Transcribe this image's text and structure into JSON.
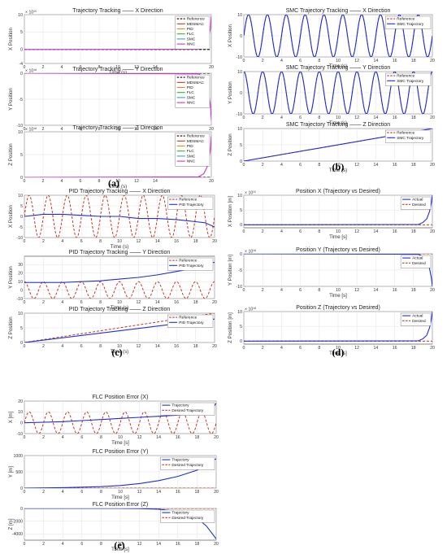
{
  "figure_captions": [
    "(a)",
    "(b)",
    "(c)",
    "(d)",
    "(e)"
  ],
  "chart_data": [
    {
      "id": "a1",
      "panel": "(a)",
      "type": "line",
      "title": "Trajectory Tracking —— X Direction",
      "xlabel": "Time (s)",
      "ylabel": "X Position",
      "exponent": "× 10¹⁵",
      "xlim": [
        0,
        20
      ],
      "ylim": [
        -4,
        10
      ],
      "xticks": [
        0,
        2,
        4,
        6,
        8,
        10,
        12,
        14,
        20
      ],
      "yticks": [
        -4,
        0,
        5,
        10
      ],
      "legend": [
        "Reference",
        "MDSMAC",
        "PID",
        "FLC",
        "SMC",
        "NNC"
      ],
      "series": [
        {
          "name": "Reference",
          "color": "#000000",
          "dash": "3,2",
          "x": [
            0,
            20
          ],
          "y": [
            0,
            0
          ]
        },
        {
          "name": "NNC",
          "color": "#cc33cc",
          "x": [
            0,
            18.6,
            19.2,
            19.6,
            19.9,
            20
          ],
          "y": [
            0,
            0.1,
            0.6,
            2,
            6,
            9.5
          ]
        }
      ]
    },
    {
      "id": "a2",
      "panel": "(a)",
      "type": "line",
      "title": "Trajectory Tracking —— Y Direction",
      "xlabel": "Time (s)",
      "ylabel": "Y Position",
      "exponent": "× 10¹⁸",
      "xlim": [
        0,
        20
      ],
      "ylim": [
        -10,
        0
      ],
      "xticks": [
        0,
        2,
        4,
        6,
        8,
        10,
        12,
        14,
        20
      ],
      "yticks": [
        -10,
        -5,
        0
      ],
      "legend": [
        "Reference",
        "MDSMAC",
        "PID",
        "FLC",
        "SMC",
        "NNC"
      ],
      "series": [
        {
          "name": "Reference",
          "color": "#000000",
          "dash": "3,2",
          "x": [
            0,
            20
          ],
          "y": [
            0,
            0
          ]
        },
        {
          "name": "NNC",
          "color": "#cc33cc",
          "x": [
            0,
            18.6,
            19.2,
            19.6,
            19.9,
            20
          ],
          "y": [
            0,
            -0.1,
            -0.8,
            -2.5,
            -6,
            -9
          ]
        }
      ]
    },
    {
      "id": "a3",
      "panel": "(a)",
      "type": "line",
      "title": "Trajectory Tracking —— Z Direction",
      "xlabel": "Time (s)",
      "ylabel": "Z Position",
      "exponent": "× 10¹⁸",
      "xlim": [
        0,
        20
      ],
      "ylim": [
        0,
        10
      ],
      "xticks": [
        0,
        2,
        4,
        6,
        8,
        10,
        12,
        14,
        20
      ],
      "yticks": [
        0,
        5,
        10
      ],
      "legend": [
        "Reference",
        "MDSMAC",
        "PID",
        "FLC",
        "SMC",
        "NNC"
      ],
      "series": [
        {
          "name": "Reference",
          "color": "#000000",
          "dash": "3,2",
          "x": [
            0,
            20
          ],
          "y": [
            0,
            0
          ]
        },
        {
          "name": "NNC",
          "color": "#cc33cc",
          "x": [
            0,
            18.6,
            19.2,
            19.6,
            19.9,
            20
          ],
          "y": [
            0,
            0.1,
            0.8,
            2.5,
            6,
            9
          ]
        }
      ]
    },
    {
      "id": "b1",
      "panel": "(b)",
      "type": "line",
      "title": "SMC Trajectory Tracking —— X Direction",
      "xlabel": "Time (s)",
      "ylabel": "X Position",
      "xlim": [
        0,
        20
      ],
      "ylim": [
        -10,
        10
      ],
      "xticks": [
        0,
        2,
        4,
        6,
        8,
        10,
        12,
        14,
        16,
        18,
        20
      ],
      "yticks": [
        -10,
        0,
        10
      ],
      "legend": [
        "Reference",
        "SMC Trajectory"
      ],
      "series": [
        {
          "name": "Reference",
          "color": "#c0392b",
          "dash": "3,2",
          "func": "sin",
          "amp": 10,
          "freq": 0.5
        },
        {
          "name": "SMC Trajectory",
          "color": "#1f2fd0",
          "func": "sin",
          "amp": 10,
          "freq": 0.5
        }
      ]
    },
    {
      "id": "b2",
      "panel": "(b)",
      "type": "line",
      "title": "SMC Trajectory Tracking —— Y Direction",
      "xlabel": "Time (s)",
      "ylabel": "Y Position",
      "xlim": [
        0,
        20
      ],
      "ylim": [
        -10,
        10
      ],
      "xticks": [
        0,
        2,
        4,
        6,
        8,
        10,
        12,
        14,
        16,
        18,
        20
      ],
      "yticks": [
        -10,
        0,
        10
      ],
      "legend": [
        "Reference",
        "SMC Trajectory"
      ],
      "series": [
        {
          "name": "Reference",
          "color": "#c0392b",
          "dash": "3,2",
          "func": "cos",
          "amp": 10,
          "freq": 0.5
        },
        {
          "name": "SMC Trajectory",
          "color": "#1f2fd0",
          "func": "cos",
          "amp": 10,
          "freq": 0.5
        }
      ]
    },
    {
      "id": "b3",
      "panel": "(b)",
      "type": "line",
      "title": "SMC Trajectory Tracking —— Z Direction",
      "xlabel": "Time (s)",
      "ylabel": "Z Position",
      "xlim": [
        0,
        20
      ],
      "ylim": [
        0,
        10
      ],
      "xticks": [
        0,
        2,
        4,
        6,
        8,
        10,
        12,
        14,
        16,
        18,
        20
      ],
      "yticks": [
        0,
        5,
        10
      ],
      "legend": [
        "Reference",
        "SMC Trajectory"
      ],
      "series": [
        {
          "name": "Reference",
          "color": "#c0392b",
          "dash": "3,2",
          "x": [
            0,
            20
          ],
          "y": [
            0,
            10
          ]
        },
        {
          "name": "SMC Trajectory",
          "color": "#1f2fd0",
          "x": [
            0,
            20
          ],
          "y": [
            0,
            10
          ]
        }
      ]
    },
    {
      "id": "c1",
      "panel": "(c)",
      "type": "line",
      "title": "PID Trajectory Tracking —— X Direction",
      "xlabel": "Time (s)",
      "ylabel": "X Position",
      "xlim": [
        0,
        20
      ],
      "ylim": [
        -10,
        10
      ],
      "xticks": [
        0,
        2,
        4,
        6,
        8,
        10,
        12,
        14,
        16,
        18,
        20
      ],
      "yticks": [
        -10,
        -5,
        0,
        5,
        10
      ],
      "legend": [
        "Reference",
        "PID Trajectory"
      ],
      "series": [
        {
          "name": "Reference",
          "color": "#c0392b",
          "dash": "3,2",
          "func": "sin",
          "amp": 10,
          "freq": 0.5
        },
        {
          "name": "PID Trajectory",
          "color": "#1f2fd0",
          "x": [
            0,
            2,
            4,
            6,
            8,
            10,
            12,
            14,
            16,
            17,
            18,
            19,
            20
          ],
          "y": [
            0,
            1,
            1,
            0.5,
            0,
            0,
            -1,
            -1,
            -1.5,
            -2,
            -2.5,
            -3,
            -5
          ]
        }
      ]
    },
    {
      "id": "c2",
      "panel": "(c)",
      "type": "line",
      "title": "PID Trajectory Tracking —— Y Direction",
      "xlabel": "Time (s)",
      "ylabel": "Y Position",
      "xlim": [
        0,
        20
      ],
      "ylim": [
        -10,
        40
      ],
      "xticks": [
        0,
        2,
        4,
        6,
        8,
        10,
        12,
        14,
        16,
        18,
        20
      ],
      "yticks": [
        -10,
        0,
        10,
        20,
        30
      ],
      "legend": [
        "Reference",
        "PID Trajectory"
      ],
      "series": [
        {
          "name": "Reference",
          "color": "#c0392b",
          "dash": "3,2",
          "func": "cos",
          "amp": 10,
          "freq": 0.5
        },
        {
          "name": "PID Trajectory",
          "color": "#1f2fd0",
          "x": [
            0,
            2,
            4,
            6,
            8,
            10,
            12,
            14,
            16,
            18,
            19,
            20
          ],
          "y": [
            9,
            9,
            9,
            10,
            11,
            13,
            15,
            18,
            22,
            26,
            29,
            33
          ]
        }
      ]
    },
    {
      "id": "c3",
      "panel": "(c)",
      "type": "line",
      "title": "PID Trajectory Tracking —— Z Direction",
      "xlabel": "Time (s)",
      "ylabel": "Z Position",
      "xlim": [
        0,
        20
      ],
      "ylim": [
        0,
        10
      ],
      "xticks": [
        0,
        2,
        4,
        6,
        8,
        10,
        12,
        14,
        16,
        18,
        20
      ],
      "yticks": [
        0,
        5,
        10
      ],
      "legend": [
        "Reference",
        "PID Trajectory"
      ],
      "series": [
        {
          "name": "Reference",
          "color": "#c0392b",
          "dash": "3,2",
          "x": [
            0,
            20
          ],
          "y": [
            0,
            10
          ]
        },
        {
          "name": "PID Trajectory",
          "color": "#1f2fd0",
          "x": [
            0,
            20
          ],
          "y": [
            0,
            8
          ]
        }
      ]
    },
    {
      "id": "d1",
      "panel": "(d)",
      "type": "line",
      "title": "Position X (Trajectory vs Desired)",
      "xlabel": "Time [s]",
      "ylabel": "X Position [m]",
      "exponent": "× 10¹⁵",
      "xlim": [
        0,
        20
      ],
      "ylim": [
        -1,
        10
      ],
      "xticks": [
        0,
        2,
        4,
        6,
        8,
        10,
        12,
        14,
        16,
        18,
        20
      ],
      "yticks": [
        0,
        5,
        10
      ],
      "legend": [
        "Actual",
        "Desired"
      ],
      "series": [
        {
          "name": "Desired",
          "color": "#c0392b",
          "dash": "3,2",
          "x": [
            0,
            20
          ],
          "y": [
            0,
            0
          ]
        },
        {
          "name": "Actual",
          "color": "#1f2fd0",
          "x": [
            0,
            18.5,
            19,
            19.4,
            19.7,
            19.9,
            20
          ],
          "y": [
            0,
            0.1,
            0.8,
            2,
            4.5,
            7.5,
            10
          ]
        }
      ]
    },
    {
      "id": "d2",
      "panel": "(d)",
      "type": "line",
      "title": "Position Y (Trajectory vs Desired)",
      "xlabel": "Time [s]",
      "ylabel": "Y Position [m]",
      "exponent": "× 10¹⁸",
      "xlim": [
        0,
        20
      ],
      "ylim": [
        -10,
        0
      ],
      "xticks": [
        0,
        2,
        4,
        6,
        8,
        10,
        12,
        14,
        16,
        18,
        20
      ],
      "yticks": [
        -10,
        -5,
        0
      ],
      "legend": [
        "Actual",
        "Desired"
      ],
      "series": [
        {
          "name": "Desired",
          "color": "#c0392b",
          "dash": "3,2",
          "x": [
            0,
            20
          ],
          "y": [
            0,
            0
          ]
        },
        {
          "name": "Actual",
          "color": "#1f2fd0",
          "x": [
            0,
            18.5,
            19,
            19.4,
            19.7,
            19.9,
            20
          ],
          "y": [
            0,
            -0.1,
            -0.8,
            -2,
            -4.5,
            -7.5,
            -10
          ]
        }
      ]
    },
    {
      "id": "d3",
      "panel": "(d)",
      "type": "line",
      "title": "Position Z (Trajectory vs Desired)",
      "xlabel": "Time [s]",
      "ylabel": "Z Position [m]",
      "exponent": "× 10¹⁸",
      "xlim": [
        0,
        20
      ],
      "ylim": [
        -1,
        10
      ],
      "xticks": [
        0,
        2,
        4,
        6,
        8,
        10,
        12,
        14,
        16,
        18,
        20
      ],
      "yticks": [
        0,
        5,
        10
      ],
      "legend": [
        "Actual",
        "Desired"
      ],
      "series": [
        {
          "name": "Desired",
          "color": "#c0392b",
          "dash": "3,2",
          "x": [
            0,
            20
          ],
          "y": [
            0,
            0
          ]
        },
        {
          "name": "Actual",
          "color": "#1f2fd0",
          "x": [
            0,
            18.5,
            19,
            19.4,
            19.7,
            19.9,
            20
          ],
          "y": [
            0,
            0.1,
            0.8,
            2,
            4.5,
            7.5,
            10
          ]
        }
      ]
    },
    {
      "id": "e1",
      "panel": "(e)",
      "type": "line",
      "title": "FLC Position Error (X)",
      "xlabel": "Time [s]",
      "ylabel": "X [m]",
      "xlim": [
        0,
        20
      ],
      "ylim": [
        -10,
        20
      ],
      "xticks": [
        0,
        2,
        4,
        6,
        8,
        10,
        12,
        14,
        16,
        18,
        20
      ],
      "yticks": [
        -10,
        0,
        10,
        20
      ],
      "legend": [
        "Trajectory",
        "Desired Trajectory"
      ],
      "series": [
        {
          "name": "Desired Trajectory",
          "color": "#c0392b",
          "dash": "3,2",
          "func": "sin",
          "amp": 10,
          "freq": 0.5
        },
        {
          "name": "Trajectory",
          "color": "#1f2fd0",
          "x": [
            0,
            2,
            4,
            6,
            8,
            10,
            12,
            14,
            16,
            18,
            19,
            19.5,
            20
          ],
          "y": [
            0,
            0.5,
            1,
            2,
            3,
            4,
            5,
            6,
            7,
            8,
            9,
            12,
            18
          ]
        }
      ]
    },
    {
      "id": "e2",
      "panel": "(e)",
      "type": "line",
      "title": "FLC Position Error (Y)",
      "xlabel": "Time [s]",
      "ylabel": "Y [m]",
      "xlim": [
        0,
        20
      ],
      "ylim": [
        0,
        1000
      ],
      "xticks": [
        0,
        2,
        4,
        6,
        8,
        10,
        12,
        14,
        16,
        18,
        20
      ],
      "yticks": [
        0,
        500,
        1000
      ],
      "legend": [
        "Trajectory",
        "Desired Trajectory"
      ],
      "series": [
        {
          "name": "Desired Trajectory",
          "color": "#c0392b",
          "dash": "3,2",
          "x": [
            0,
            20
          ],
          "y": [
            0,
            0
          ]
        },
        {
          "name": "Trajectory",
          "color": "#1f2fd0",
          "x": [
            0,
            4,
            8,
            10,
            12,
            14,
            16,
            18,
            19,
            19.6,
            20
          ],
          "y": [
            0,
            15,
            45,
            80,
            140,
            230,
            360,
            550,
            700,
            850,
            900
          ]
        }
      ]
    },
    {
      "id": "e3",
      "panel": "(e)",
      "type": "line",
      "title": "FLC Position Error (Z)",
      "xlabel": "Time [s]",
      "ylabel": "Z [m]",
      "xlim": [
        0,
        20
      ],
      "ylim": [
        -5000,
        0
      ],
      "xticks": [
        0,
        2,
        4,
        6,
        8,
        10,
        12,
        14,
        16,
        18,
        20
      ],
      "yticks": [
        -4000,
        -2000,
        0
      ],
      "legend": [
        "Trajectory",
        "Desired Trajectory"
      ],
      "series": [
        {
          "name": "Desired Trajectory",
          "color": "#c0392b",
          "dash": "3,2",
          "x": [
            0,
            20
          ],
          "y": [
            0,
            0
          ]
        },
        {
          "name": "Trajectory",
          "color": "#1f2fd0",
          "x": [
            0,
            10,
            12,
            14,
            16,
            17,
            18,
            19,
            20
          ],
          "y": [
            0,
            0,
            -20,
            -120,
            -450,
            -800,
            -1500,
            -2800,
            -4800
          ]
        }
      ]
    }
  ]
}
